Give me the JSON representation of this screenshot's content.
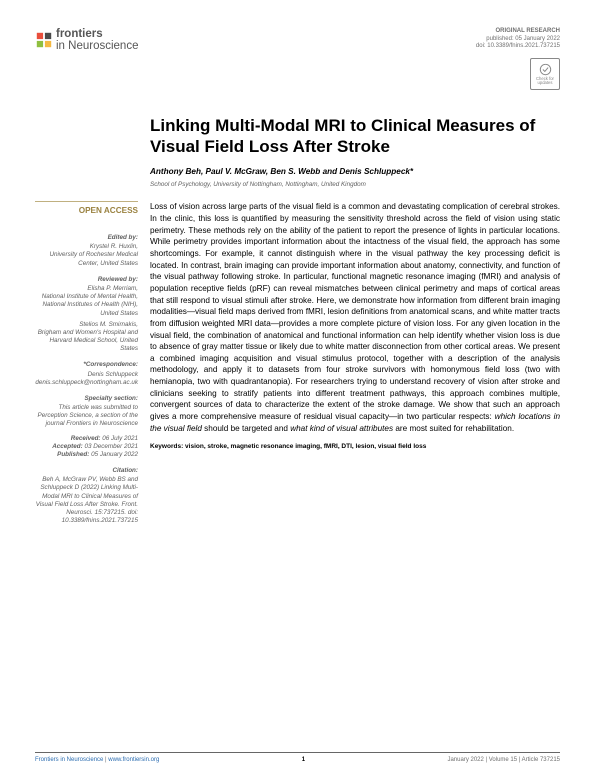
{
  "journal": {
    "name_prefix": "frontiers",
    "name_sub": "in Neuroscience",
    "logo_colors": [
      "#e94e3c",
      "#e94e3c",
      "#4a4a4a",
      "#8fbf3f",
      "#f5b941"
    ]
  },
  "header_meta": {
    "type": "ORIGINAL RESEARCH",
    "published": "published: 05 January 2022",
    "doi": "doi: 10.3389/fnins.2021.737215"
  },
  "check_updates": "Check for updates",
  "title": "Linking Multi-Modal MRI to Clinical Measures of Visual Field Loss After Stroke",
  "authors": "Anthony Beh, Paul V. McGraw, Ben S. Webb and Denis Schluppeck*",
  "affiliation": "School of Psychology, University of Nottingham, Nottingham, United Kingdom",
  "open_access_label": "OPEN ACCESS",
  "sidebar": {
    "edited_by_label": "Edited by:",
    "edited_by_name": "Krystel R. Huxlin,",
    "edited_by_inst": "University of Rochester Medical Center, United States",
    "reviewed_by_label": "Reviewed by:",
    "reviewer1_name": "Elisha P. Merriam,",
    "reviewer1_inst": "National Institute of Mental Health, National Institutes of Health (NIH), United States",
    "reviewer2_name": "Stelios M. Smirnakis,",
    "reviewer2_inst": "Brigham and Women's Hospital and Harvard Medical School, United States",
    "correspondence_label": "*Correspondence:",
    "correspondence_name": "Denis Schluppeck",
    "correspondence_email": "denis.schluppeck@nottingham.ac.uk",
    "specialty_label": "Specialty section:",
    "specialty_text": "This article was submitted to Perception Science, a section of the journal Frontiers in Neuroscience",
    "received_label": "Received:",
    "received_date": "06 July 2021",
    "accepted_label": "Accepted:",
    "accepted_date": "03 December 2021",
    "published_label": "Published:",
    "published_date": "05 January 2022",
    "citation_label": "Citation:",
    "citation_text": "Beh A, McGraw PV, Webb BS and Schluppeck D (2022) Linking Multi-Modal MRI to Clinical Measures of Visual Field Loss After Stroke. Front. Neurosci. 15:737215. doi: 10.3389/fnins.2021.737215"
  },
  "abstract": "Loss of vision across large parts of the visual field is a common and devastating complication of cerebral strokes. In the clinic, this loss is quantified by measuring the sensitivity threshold across the field of vision using static perimetry. These methods rely on the ability of the patient to report the presence of lights in particular locations. While perimetry provides important information about the intactness of the visual field, the approach has some shortcomings. For example, it cannot distinguish where in the visual pathway the key processing deficit is located. In contrast, brain imaging can provide important information about anatomy, connectivity, and function of the visual pathway following stroke. In particular, functional magnetic resonance imaging (fMRI) and analysis of population receptive fields (pRF) can reveal mismatches between clinical perimetry and maps of cortical areas that still respond to visual stimuli after stroke. Here, we demonstrate how information from different brain imaging modalities—visual field maps derived from fMRI, lesion definitions from anatomical scans, and white matter tracts from diffusion weighted MRI data—provides a more complete picture of vision loss. For any given location in the visual field, the combination of anatomical and functional information can help identify whether vision loss is due to absence of gray matter tissue or likely due to white matter disconnection from other cortical areas. We present a combined imaging acquisition and visual stimulus protocol, together with a description of the analysis methodology, and apply it to datasets from four stroke survivors with homonymous field loss (two with hemianopia, two with quadrantanopia). For researchers trying to understand recovery of vision after stroke and clinicians seeking to stratify patients into different treatment pathways, this approach combines multiple, convergent sources of data to characterize the extent of the stroke damage. We show that such an approach gives a more comprehensive measure of residual visual capacity—in two particular respects: which locations in the visual field should be targeted and what kind of visual attributes are most suited for rehabilitation.",
  "keywords": "Keywords: vision, stroke, magnetic resonance imaging, fMRI, DTI, lesion, visual field loss",
  "footer": {
    "left_journal": "Frontiers in Neuroscience",
    "left_url": "www.frontiersin.org",
    "page": "1",
    "right": "January 2022 | Volume 15 | Article 737215"
  }
}
